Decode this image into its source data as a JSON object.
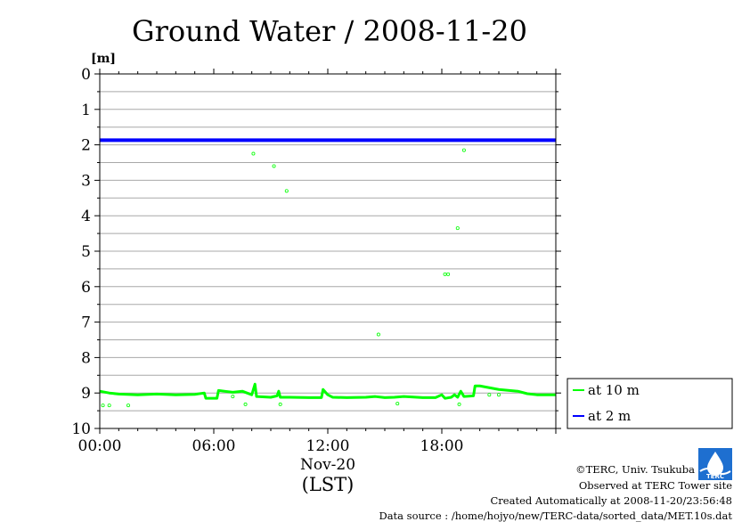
{
  "chart_data": {
    "type": "line",
    "title": "Ground Water / 2008-11-20",
    "ylabel": "[m]",
    "xlabel": "(LST)",
    "x_date_label": "Nov-20",
    "ylim": [
      0,
      10
    ],
    "y_inverted": true,
    "y_ticks": [
      "0",
      "1",
      "2",
      "3",
      "4",
      "5",
      "6",
      "7",
      "8",
      "9",
      "10"
    ],
    "xlim": [
      "00:00",
      "24:00"
    ],
    "x_ticks": [
      "00:00",
      "06:00",
      "12:00",
      "18:00"
    ],
    "grid": true,
    "legend_position": "right-bottom",
    "series": [
      {
        "name": "at 10 m",
        "color": "#00ff00",
        "points": [
          [
            "00:00",
            8.95
          ],
          [
            "00:30",
            9.0
          ],
          [
            "01:00",
            9.03
          ],
          [
            "02:00",
            9.05
          ],
          [
            "03:00",
            9.03
          ],
          [
            "04:00",
            9.05
          ],
          [
            "05:00",
            9.04
          ],
          [
            "05:30",
            9.0
          ],
          [
            "05:35",
            9.15
          ],
          [
            "06:10",
            9.15
          ],
          [
            "06:15",
            8.93
          ],
          [
            "07:00",
            8.98
          ],
          [
            "07:30",
            8.95
          ],
          [
            "08:00",
            9.05
          ],
          [
            "08:10",
            8.75
          ],
          [
            "08:15",
            9.1
          ],
          [
            "09:00",
            9.12
          ],
          [
            "09:20",
            9.08
          ],
          [
            "09:25",
            8.95
          ],
          [
            "09:30",
            9.12
          ],
          [
            "10:00",
            9.12
          ],
          [
            "11:00",
            9.13
          ],
          [
            "11:40",
            9.13
          ],
          [
            "11:45",
            8.9
          ],
          [
            "12:00",
            9.05
          ],
          [
            "12:15",
            9.12
          ],
          [
            "13:00",
            9.13
          ],
          [
            "14:00",
            9.12
          ],
          [
            "14:30",
            9.1
          ],
          [
            "15:00",
            9.13
          ],
          [
            "15:30",
            9.12
          ],
          [
            "16:00",
            9.1
          ],
          [
            "17:00",
            9.13
          ],
          [
            "17:40",
            9.13
          ],
          [
            "18:00",
            9.05
          ],
          [
            "18:10",
            9.15
          ],
          [
            "18:30",
            9.12
          ],
          [
            "18:40",
            9.05
          ],
          [
            "18:50",
            9.12
          ],
          [
            "19:00",
            8.95
          ],
          [
            "19:10",
            9.1
          ],
          [
            "19:40",
            9.08
          ],
          [
            "19:45",
            8.8
          ],
          [
            "20:00",
            8.8
          ],
          [
            "20:30",
            8.85
          ],
          [
            "21:00",
            8.9
          ],
          [
            "22:00",
            8.95
          ],
          [
            "22:30",
            9.02
          ],
          [
            "23:00",
            9.05
          ],
          [
            "24:00",
            9.05
          ]
        ],
        "outliers": [
          [
            "00:10",
            9.35
          ],
          [
            "00:30",
            9.35
          ],
          [
            "01:30",
            9.35
          ],
          [
            "07:00",
            9.1
          ],
          [
            "07:40",
            9.32
          ],
          [
            "08:05",
            2.25
          ],
          [
            "09:10",
            2.6
          ],
          [
            "09:30",
            9.32
          ],
          [
            "09:50",
            3.3
          ],
          [
            "14:40",
            7.35
          ],
          [
            "15:40",
            9.3
          ],
          [
            "18:10",
            5.65
          ],
          [
            "18:20",
            5.65
          ],
          [
            "18:50",
            4.35
          ],
          [
            "18:55",
            9.32
          ],
          [
            "19:10",
            2.15
          ],
          [
            "20:30",
            9.05
          ],
          [
            "21:00",
            9.05
          ]
        ]
      },
      {
        "name": "at 2 m",
        "color": "#0000ff",
        "points": [
          [
            "00:00",
            1.87
          ],
          [
            "06:00",
            1.87
          ],
          [
            "12:00",
            1.87
          ],
          [
            "18:00",
            1.87
          ],
          [
            "24:00",
            1.87
          ]
        ]
      }
    ]
  },
  "footer": {
    "copyright": "©TERC, Univ. Tsukuba",
    "observed": "Observed at TERC Tower site",
    "created": "Created Automatically at 2008-11-20/23:56:48",
    "source": "Data source : /home/hojyo/new/TERC-data/sorted_data/MET.10s.dat"
  },
  "logo": {
    "label": "TERC"
  }
}
